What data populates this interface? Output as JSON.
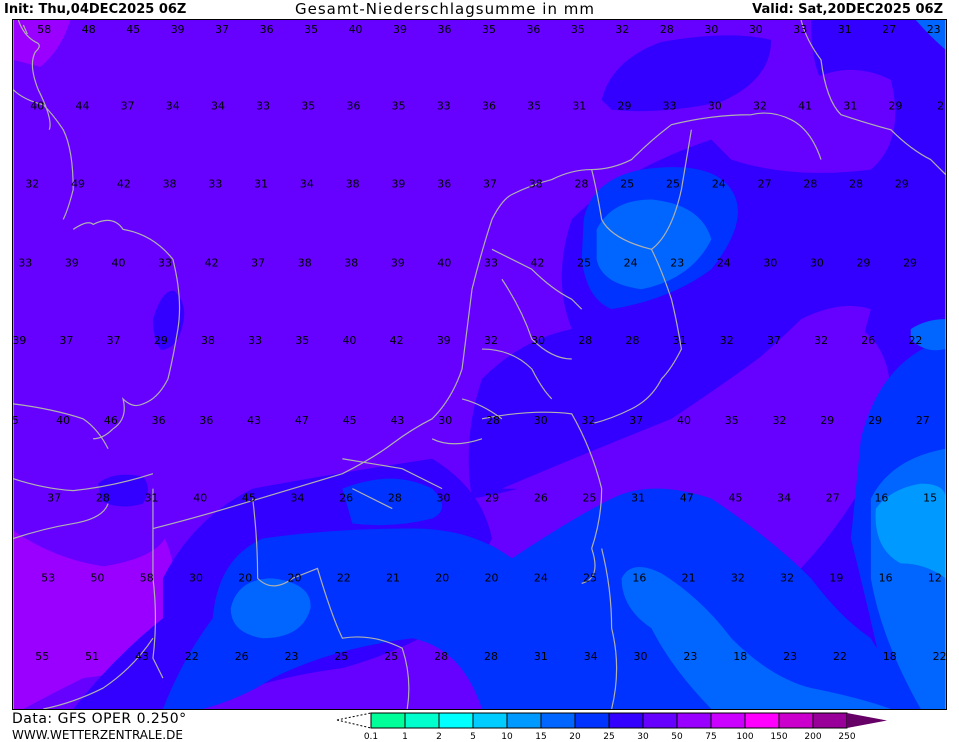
{
  "header": {
    "init": "Init: Thu,04DEC2025 06Z",
    "title": "Gesamt-Niederschlagsumme in mm",
    "valid": "Valid: Sat,20DEC2025 06Z"
  },
  "footer": {
    "data_source": "Data: GFS OPER 0.250°",
    "website": "WWW.WETTERZENTRALE.DE"
  },
  "legend": {
    "unit": "mm",
    "ticks": [
      "0.1",
      "1",
      "2",
      "5",
      "10",
      "15",
      "20",
      "25",
      "30",
      "50",
      "75",
      "100",
      "150",
      "200",
      "250"
    ],
    "colors": [
      "#00ff99",
      "#00ffcc",
      "#00ffff",
      "#00ccff",
      "#0099ff",
      "#0066ff",
      "#0033ff",
      "#3300ff",
      "#6600ff",
      "#9900ff",
      "#cc00ff",
      "#ff00ff",
      "#cc00cc",
      "#990099",
      "#660066"
    ]
  },
  "map": {
    "coastline_color": "#b0b0b0",
    "value_rows": [
      [
        "58",
        "48",
        "45",
        "39",
        "37",
        "36",
        "35",
        "40",
        "39",
        "36",
        "35",
        "36",
        "35",
        "32",
        "28",
        "30",
        "30",
        "33",
        "31",
        "27",
        "23"
      ],
      [
        "40",
        "44",
        "37",
        "34",
        "34",
        "33",
        "35",
        "36",
        "35",
        "33",
        "36",
        "35",
        "31",
        "29",
        "33",
        "30",
        "32",
        "41",
        "31",
        "29",
        "2"
      ],
      [
        "32",
        "49",
        "42",
        "38",
        "33",
        "31",
        "34",
        "38",
        "39",
        "36",
        "37",
        "38",
        "28",
        "25",
        "25",
        "24",
        "27",
        "28",
        "28",
        "29"
      ],
      [
        "33",
        "39",
        "40",
        "33",
        "42",
        "37",
        "38",
        "38",
        "39",
        "40",
        "33",
        "42",
        "25",
        "24",
        "23",
        "24",
        "30",
        "30",
        "29",
        "29"
      ],
      [
        "39",
        "37",
        "37",
        "29",
        "38",
        "33",
        "35",
        "40",
        "42",
        "39",
        "32",
        "30",
        "28",
        "28",
        "31",
        "32",
        "37",
        "32",
        "26",
        "22"
      ],
      [
        "5",
        "40",
        "46",
        "36",
        "36",
        "43",
        "47",
        "45",
        "43",
        "30",
        "28",
        "30",
        "32",
        "37",
        "40",
        "35",
        "32",
        "29",
        "29",
        "27"
      ],
      [
        "37",
        "28",
        "31",
        "40",
        "45",
        "34",
        "26",
        "28",
        "30",
        "29",
        "26",
        "25",
        "31",
        "47",
        "45",
        "34",
        "27",
        "16",
        "15"
      ],
      [
        "53",
        "50",
        "58",
        "30",
        "20",
        "20",
        "22",
        "21",
        "20",
        "20",
        "24",
        "25",
        "16",
        "21",
        "32",
        "32",
        "19",
        "16",
        "12"
      ],
      [
        "55",
        "51",
        "43",
        "22",
        "26",
        "23",
        "25",
        "25",
        "28",
        "28",
        "31",
        "34",
        "30",
        "23",
        "18",
        "23",
        "22",
        "18",
        "22"
      ]
    ]
  }
}
